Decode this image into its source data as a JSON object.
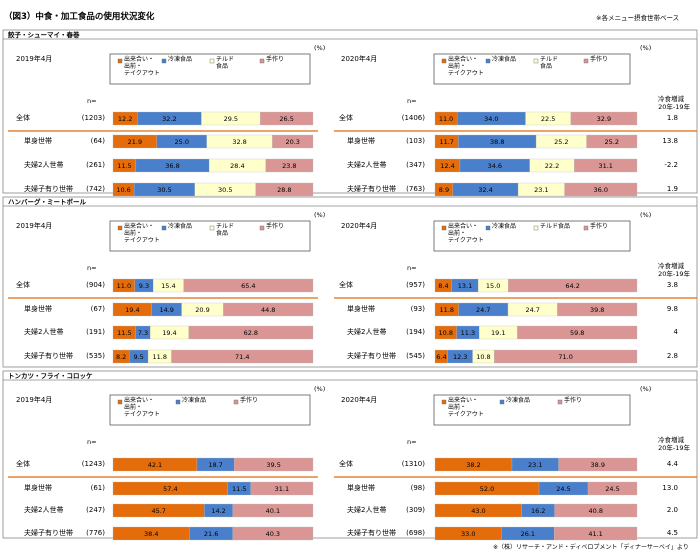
{
  "header": {
    "title": "（図3）中食・加工食品の使用状況変化",
    "note": "※各メニュー摂食世帯ベース",
    "source": "※（株）リサーチ・アンド・ディベロプメント「ディナーサーベイ」より"
  },
  "common": {
    "pct": "(%)",
    "n_label": "n=",
    "year_left": "2019年4月",
    "year_right": "2020年4月",
    "rate_head_1": "冷食増減",
    "rate_head_2": "20年-19年",
    "rows": [
      "全体",
      "単身世帯",
      "夫婦2人世帯",
      "夫婦子有り世帯"
    ]
  },
  "colors": {
    "nakashoku": "#E46C0A",
    "frozen": "#4A7FCB",
    "chilled": "#FFFFCC",
    "homemade": "#D99694",
    "divider": "#E46C0A"
  },
  "chart_data": [
    {
      "type": "bar",
      "section": "餃子・シューマイ・春巻",
      "legend": [
        {
          "key": "nakashoku",
          "label": "出来合い・\n出前・\nテイクアウト"
        },
        {
          "key": "frozen",
          "label": "冷凍食品"
        },
        {
          "key": "chilled",
          "label": "チルド\n食品"
        },
        {
          "key": "homemade",
          "label": "手作り"
        }
      ],
      "categories": [
        "全体",
        "単身世帯",
        "夫婦2人世帯",
        "夫婦子有り世帯"
      ],
      "y2019": {
        "n": [
          1203,
          64,
          261,
          742
        ],
        "series": [
          [
            12.2,
            32.2,
            29.5,
            26.5
          ],
          [
            21.9,
            25.0,
            32.8,
            20.3
          ],
          [
            11.5,
            36.8,
            28.4,
            23.8
          ],
          [
            10.6,
            30.5,
            30.5,
            28.8
          ]
        ]
      },
      "y2020": {
        "n": [
          1406,
          103,
          347,
          763
        ],
        "series": [
          [
            11.0,
            34.0,
            22.5,
            32.9
          ],
          [
            11.7,
            38.8,
            25.2,
            25.2
          ],
          [
            12.4,
            34.6,
            22.2,
            31.1
          ],
          [
            8.9,
            32.4,
            23.1,
            36.0
          ]
        ]
      },
      "frozen_change": [
        "1.8",
        "13.8",
        "-2.2",
        "1.9"
      ]
    },
    {
      "type": "bar",
      "section": "ハンバーグ・ミートボール",
      "legend": [
        {
          "key": "nakashoku",
          "label": "出来合い・\n出前・\nテイクアウト"
        },
        {
          "key": "frozen",
          "label": "冷凍食品"
        },
        {
          "key": "chilled",
          "label": "チルド\n食品"
        },
        {
          "key": "homemade",
          "label": "手作り"
        }
      ],
      "legend_right": [
        {
          "key": "nakashoku",
          "label": "出来合い・\n出前・\nテイクアウト"
        },
        {
          "key": "frozen",
          "label": "冷凍食品"
        },
        {
          "key": "chilled",
          "label": "チルド食品"
        },
        {
          "key": "homemade",
          "label": "手作り"
        }
      ],
      "categories": [
        "全体",
        "単身世帯",
        "夫婦2人世帯",
        "夫婦子有り世帯"
      ],
      "y2019": {
        "n": [
          904,
          67,
          191,
          535
        ],
        "series": [
          [
            11.0,
            9.3,
            15.4,
            65.4
          ],
          [
            19.4,
            14.9,
            20.9,
            44.8
          ],
          [
            11.5,
            7.3,
            19.4,
            62.8
          ],
          [
            8.2,
            9.5,
            11.8,
            71.4
          ]
        ]
      },
      "y2020": {
        "n": [
          957,
          93,
          194,
          545
        ],
        "series": [
          [
            8.4,
            13.1,
            15.0,
            64.2
          ],
          [
            11.8,
            24.7,
            24.7,
            39.8
          ],
          [
            10.8,
            11.3,
            19.1,
            59.8
          ],
          [
            6.4,
            12.3,
            10.8,
            71.0
          ]
        ]
      },
      "frozen_change": [
        "3.8",
        "9.8",
        "4",
        "2.8"
      ]
    },
    {
      "type": "bar",
      "section": "トンカツ・フライ・コロッケ",
      "legend": [
        {
          "key": "nakashoku",
          "label": "出来合い・\n出前・\nテイクアウト"
        },
        {
          "key": "frozen",
          "label": "冷凍食品"
        },
        {
          "key": "homemade",
          "label": "手作り"
        }
      ],
      "categories": [
        "全体",
        "単身世帯",
        "夫婦2人世帯",
        "夫婦子有り世帯"
      ],
      "y2019": {
        "n": [
          1243,
          61,
          247,
          776
        ],
        "series": [
          [
            42.1,
            18.7,
            39.5
          ],
          [
            57.4,
            11.5,
            31.1
          ],
          [
            45.7,
            14.2,
            40.1
          ],
          [
            38.4,
            21.6,
            40.3
          ]
        ]
      },
      "y2020": {
        "n": [
          1310,
          98,
          309,
          698
        ],
        "series": [
          [
            38.2,
            23.1,
            38.9
          ],
          [
            52.0,
            24.5,
            24.5
          ],
          [
            43.0,
            16.2,
            40.8
          ],
          [
            33.0,
            26.1,
            41.1
          ]
        ]
      },
      "frozen_change": [
        "4.4",
        "13.0",
        "2.0",
        "4.5"
      ]
    }
  ]
}
